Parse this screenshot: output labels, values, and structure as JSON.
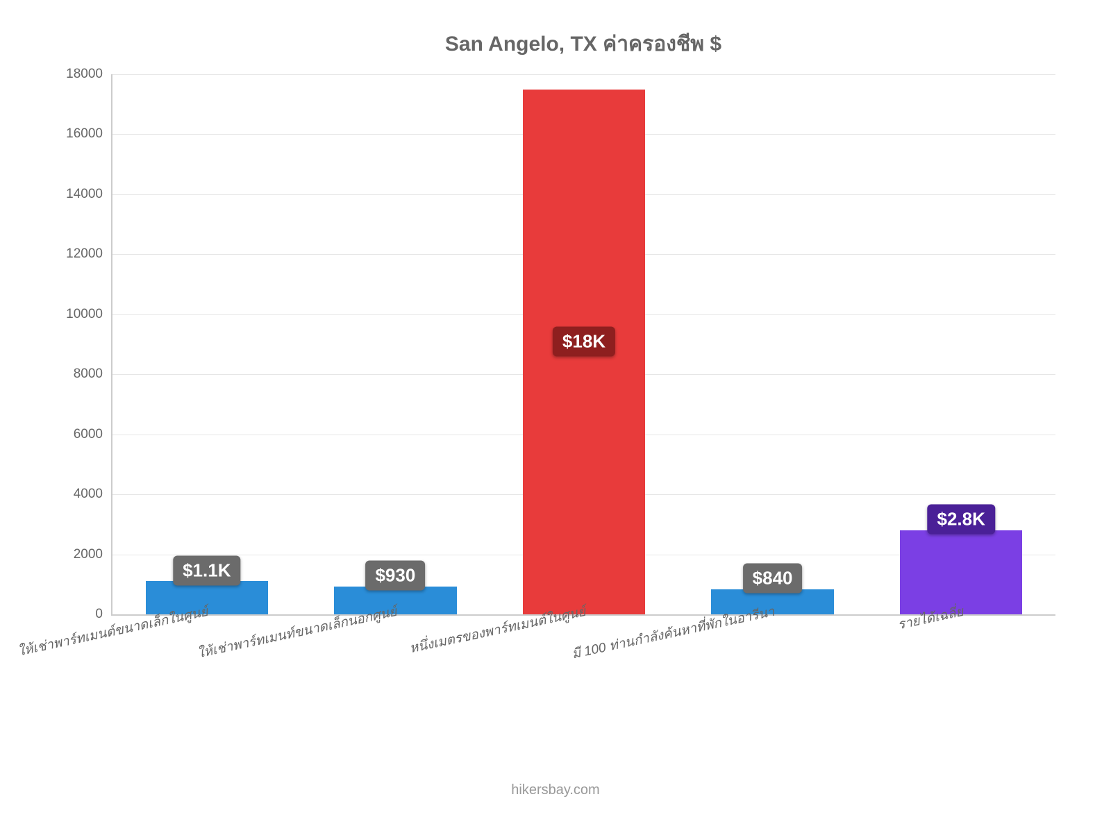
{
  "chart": {
    "type": "bar",
    "title": "San Angelo, TX ค่าครองชีพ $",
    "title_fontsize": 30,
    "title_color": "#666666",
    "background_color": "#ffffff",
    "grid_color": "#e6e6e6",
    "axis_color": "#cccccc",
    "tick_color": "#666666",
    "tick_fontsize": 19,
    "xlabel_fontsize": 19,
    "xlabel_color": "#666666",
    "ymin": 0,
    "ymax": 18000,
    "ytick_step": 2000,
    "yticks": [
      0,
      2000,
      4000,
      6000,
      8000,
      10000,
      12000,
      14000,
      16000,
      18000
    ],
    "bar_width_pct": 13,
    "gap_pct": 7,
    "categories": [
      "ให้เช่าพาร์ทเมนต์ขนาดเล็กในศูนย์",
      "ให้เช่าพาร์ทเมนท์ขนาดเล็กนอกศูนย์",
      "หนึ่งเมตรของพาร์ทเมนต์ในศูนย์",
      "มี 100 ท่านกำลังค้นหาที่พักในอารีนา",
      "รายได้เฉลี่ย"
    ],
    "values": [
      1100,
      930,
      17500,
      840,
      2800
    ],
    "value_labels": [
      "$1.1K",
      "$930",
      "$18K",
      "$840",
      "$2.8K"
    ],
    "bar_colors": [
      "#2a8dd8",
      "#2a8dd8",
      "#e83b3b",
      "#2a8dd8",
      "#7b3fe4"
    ],
    "label_box_colors": [
      "#6b6b6b",
      "#6b6b6b",
      "#8e1f1f",
      "#6b6b6b",
      "#4a2097"
    ],
    "label_text_color": "#ffffff",
    "label_fontsize": 26,
    "credit": "hikersbay.com",
    "credit_color": "#999999",
    "credit_fontsize": 20
  }
}
